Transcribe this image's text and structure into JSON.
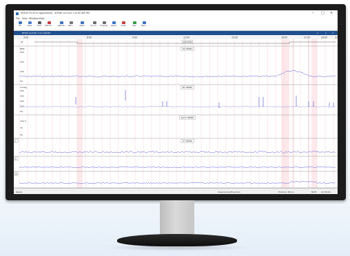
{
  "window": {
    "title": "Shiner PC-ECG Application - BTDM 12/7/20 7:4:00 AM PM"
  },
  "menu": [
    "File",
    "View",
    "Windows",
    "Help"
  ],
  "toolbar": [
    {
      "label": "P.T.",
      "icon": "patient-icon",
      "color": "#3a6fc4"
    },
    {
      "label": "Save",
      "icon": "save-icon",
      "color": "#4a7fd0"
    },
    {
      "label": "Print",
      "icon": "print-icon",
      "color": "#555555"
    },
    {
      "label": "PDF Ex...",
      "icon": "pdf-icon",
      "color": "#c63a3a"
    },
    {
      "label": "Refresh",
      "icon": "refresh-icon",
      "color": "#3a6fc4"
    },
    {
      "label": "Rem...",
      "icon": "remove-icon",
      "color": "#777777"
    },
    {
      "label": "Setup",
      "icon": "setup-icon",
      "color": "#3a6fc4"
    },
    {
      "label": "ST Lou...",
      "icon": "st-icon",
      "color": "#6a6a6a"
    },
    {
      "label": "Property",
      "icon": "property-icon",
      "color": "#6a6a6a"
    },
    {
      "label": "Opent",
      "icon": "open-icon",
      "color": "#3a6fc4"
    },
    {
      "label": "Close",
      "icon": "close-icon",
      "color": "#c63a3a"
    },
    {
      "label": "Play",
      "icon": "play-icon",
      "color": "#2f9a3e"
    },
    {
      "label": "Next...",
      "icon": "next-icon",
      "color": "#3a6fc4"
    }
  ],
  "document": {
    "title": "BTDM 12/7/20 7:4:0 AM PM"
  },
  "time_axis": [
    "3:00",
    "6:00",
    "9:00",
    "12:00",
    "15:00",
    "18:00",
    "21:00",
    "24:00",
    "3:00"
  ],
  "panels": {
    "rhythm": {
      "label": "RHYTHM",
      "tag": "AF"
    },
    "hr": {
      "label": "HR TREND",
      "unit": "BPM",
      "ticks": [
        "200",
        "150",
        "100",
        "50"
      ]
    },
    "bp": {
      "label": "BP TREND",
      "unit": "mmHg",
      "ticks": [
        "250",
        "200",
        "150",
        "100",
        "50"
      ]
    },
    "spo2": {
      "label": "SpO2 TREND",
      "ticks": [
        "100 %",
        "75",
        "50"
      ]
    },
    "st1": {
      "label": "ST TREND",
      "channel": "I"
    },
    "st2": {
      "channel": "II"
    },
    "st3": {
      "channel": "III"
    }
  },
  "status": {
    "left": "Ready",
    "physician": "Supervising Physician",
    "protocol": "Protocol: Bruce",
    "num": "NUM",
    "time": "11:50:04"
  }
}
